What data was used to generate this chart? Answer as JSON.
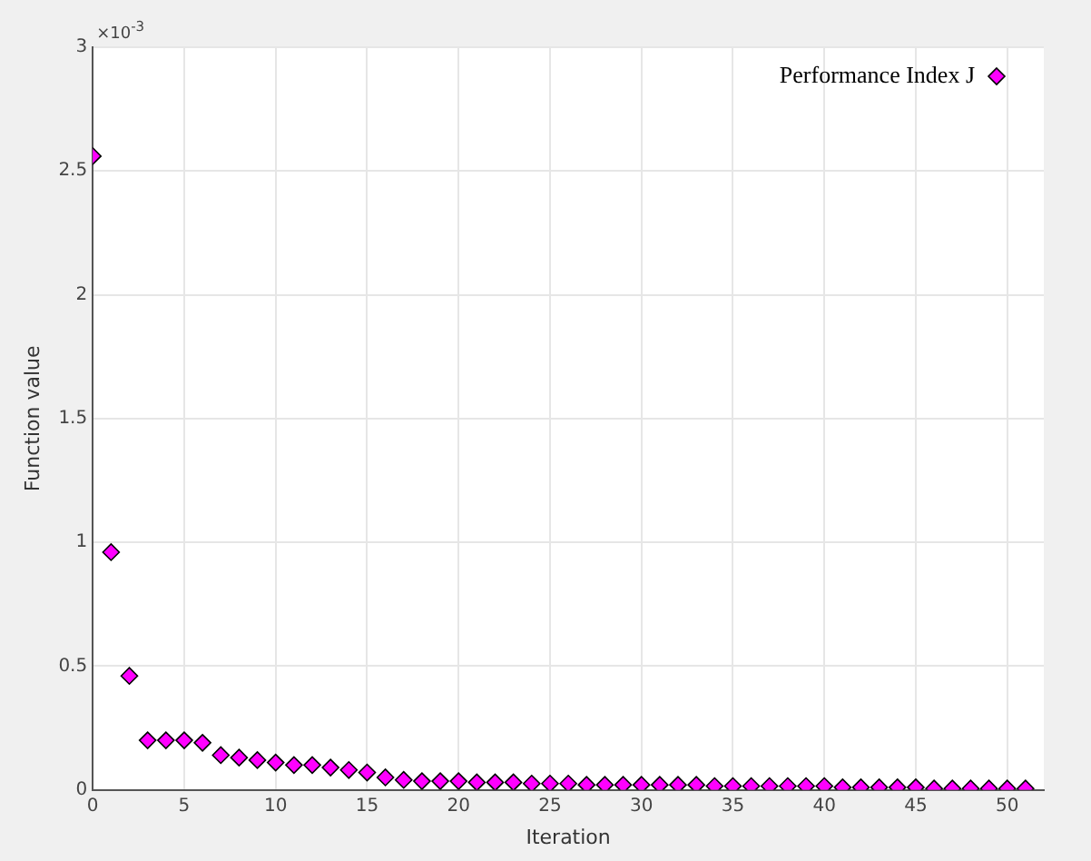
{
  "chart_data": {
    "type": "scatter",
    "xlabel": "Iteration",
    "ylabel": "Function value",
    "annotations": [
      "×10$^{-3}$"
    ],
    "x": [
      0,
      1,
      2,
      3,
      4,
      5,
      6,
      7,
      8,
      9,
      10,
      11,
      12,
      13,
      14,
      15,
      16,
      17,
      18,
      19,
      20,
      21,
      22,
      23,
      24,
      25,
      26,
      27,
      28,
      29,
      30,
      31,
      32,
      33,
      34,
      35,
      36,
      37,
      38,
      39,
      40,
      41,
      42,
      43,
      44,
      45,
      46,
      47,
      48,
      49,
      50,
      51
    ],
    "series": [
      {
        "name": "Performance Index J",
        "color": "#ff00ff",
        "values": [
          2.56,
          0.96,
          0.46,
          0.2,
          0.2,
          0.2,
          0.19,
          0.14,
          0.13,
          0.12,
          0.11,
          0.1,
          0.1,
          0.09,
          0.08,
          0.07,
          0.05,
          0.04,
          0.035,
          0.035,
          0.035,
          0.03,
          0.03,
          0.03,
          0.025,
          0.025,
          0.025,
          0.02,
          0.02,
          0.02,
          0.02,
          0.02,
          0.02,
          0.02,
          0.015,
          0.015,
          0.015,
          0.015,
          0.015,
          0.015,
          0.015,
          0.01,
          0.01,
          0.01,
          0.01,
          0.01,
          0.005,
          0.005,
          0.005,
          0.005,
          0.005,
          0.005
        ]
      }
    ],
    "xlim": [
      0,
      52
    ],
    "xticks": [
      0,
      5,
      10,
      15,
      20,
      25,
      30,
      35,
      40,
      45,
      50
    ],
    "ylim": [
      0,
      3
    ],
    "yticks": [
      0,
      0.5,
      1,
      1.5,
      2,
      2.5,
      3
    ],
    "grid": true,
    "legend": "top right",
    "marker": "diamond"
  }
}
